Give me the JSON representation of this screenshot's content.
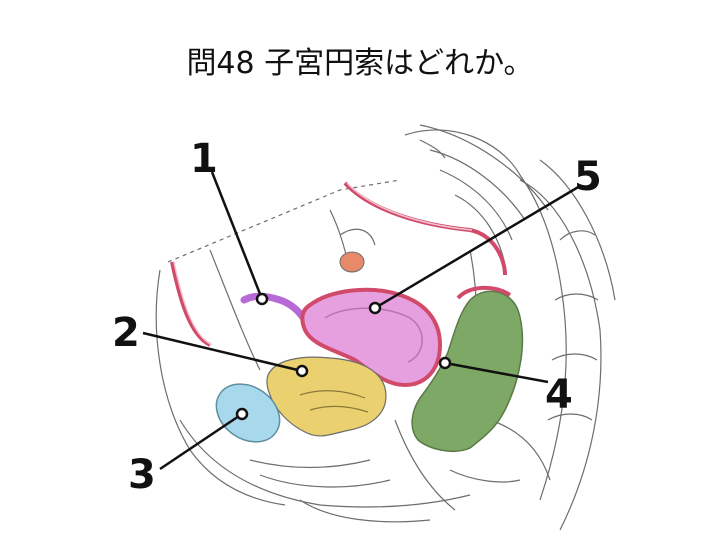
{
  "question": {
    "title": "問48 子宮円索はどれか。"
  },
  "labels": [
    "1",
    "2",
    "3",
    "4",
    "5"
  ],
  "colors": {
    "purple": "#b76ad6",
    "pink": "#e6a0df",
    "yellow": "#ead06e",
    "blue": "#a8d8ec",
    "green": "#7ea865",
    "red_lining": "#d24a6a",
    "sketch": "#6d6d6d"
  }
}
